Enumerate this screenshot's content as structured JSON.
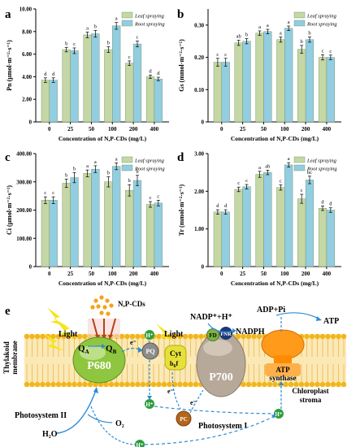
{
  "chart_data": [
    {
      "panel": "a",
      "type": "bar",
      "ylabel_main": "Pn",
      "ylabel_unit": "(μmol·m⁻²·s⁻¹)",
      "xlabel": "Concentration of N,P-CDs (mg/L)",
      "categories": [
        "0",
        "25",
        "50",
        "100",
        "200",
        "400"
      ],
      "ylim": [
        0,
        10
      ],
      "yticks": [
        "0",
        "2.00",
        "4.00",
        "6.00",
        "8.00",
        "10.00"
      ],
      "ytick_values": [
        0,
        2,
        4,
        6,
        8,
        10
      ],
      "series": [
        {
          "name": "Leaf spraying",
          "values": [
            3.7,
            6.4,
            7.7,
            6.4,
            5.2,
            4.0
          ],
          "errors": [
            0.2,
            0.2,
            0.25,
            0.25,
            0.2,
            0.15
          ],
          "letters": [
            "d",
            "b",
            "a",
            "b",
            "c",
            "d"
          ]
        },
        {
          "name": "Root spraying",
          "values": [
            3.7,
            6.3,
            7.8,
            8.5,
            6.9,
            3.8
          ],
          "errors": [
            0.2,
            0.25,
            0.3,
            0.3,
            0.25,
            0.15
          ],
          "letters": [
            "d",
            "c",
            "b",
            "a",
            "c",
            "d"
          ]
        }
      ]
    },
    {
      "panel": "b",
      "type": "bar",
      "ylabel_main": "Gs",
      "ylabel_unit": "(mmol·m⁻²·s⁻¹)",
      "xlabel": "Concentration of N,P-CDs (mg/L)",
      "categories": [
        "0",
        "25",
        "50",
        "100",
        "200",
        "400"
      ],
      "ylim": [
        0,
        0.35
      ],
      "yticks": [
        "0",
        "0.10",
        "0.20",
        "0.30"
      ],
      "ytick_values": [
        0,
        0.1,
        0.2,
        0.3
      ],
      "series": [
        {
          "name": "Leaf spraying",
          "values": [
            0.185,
            0.245,
            0.275,
            0.255,
            0.225,
            0.2
          ],
          "errors": [
            0.012,
            0.008,
            0.007,
            0.008,
            0.012,
            0.008
          ],
          "letters": [
            "c",
            "ab",
            "a",
            "a",
            "b",
            "c"
          ]
        },
        {
          "name": "Root spraying",
          "values": [
            0.185,
            0.25,
            0.28,
            0.29,
            0.255,
            0.2
          ],
          "errors": [
            0.012,
            0.008,
            0.007,
            0.007,
            0.008,
            0.007
          ],
          "letters": [
            "c",
            "b",
            "a",
            "a",
            "b",
            "c"
          ]
        }
      ]
    },
    {
      "panel": "c",
      "type": "bar",
      "ylabel_main": "Ci",
      "ylabel_unit": "(μmol·m⁻²·s⁻¹)",
      "xlabel": "Concentration of N,P-CDs (mg/L)",
      "categories": [
        "0",
        "25",
        "50",
        "100",
        "200",
        "400"
      ],
      "ylim": [
        0,
        400
      ],
      "yticks": [
        "0",
        "100.00",
        "200.00",
        "300.00",
        "400.00"
      ],
      "ytick_values": [
        0,
        100,
        200,
        300,
        400
      ],
      "series": [
        {
          "name": "Leaf spraying",
          "values": [
            235,
            295,
            330,
            300,
            270,
            220
          ],
          "errors": [
            12,
            15,
            12,
            18,
            20,
            10
          ],
          "letters": [
            "c",
            "b",
            "a",
            "b",
            "b",
            "c"
          ]
        },
        {
          "name": "Root spraying",
          "values": [
            235,
            315,
            345,
            355,
            305,
            225
          ],
          "errors": [
            12,
            18,
            12,
            12,
            18,
            10
          ],
          "letters": [
            "c",
            "b",
            "a",
            "a",
            "b",
            "c"
          ]
        }
      ]
    },
    {
      "panel": "d",
      "type": "bar",
      "ylabel_main": "Tr",
      "ylabel_unit": "(mmol·m⁻²·s⁻¹)",
      "xlabel": "Concentration of N,P-CDs (mg/L)",
      "categories": [
        "0",
        "25",
        "50",
        "100",
        "200",
        "400"
      ],
      "ylim": [
        0,
        3
      ],
      "yticks": [
        "0",
        "1.00",
        "2.00",
        "3.00"
      ],
      "ytick_values": [
        0,
        1,
        2,
        3
      ],
      "series": [
        {
          "name": "Leaf spraying",
          "values": [
            1.45,
            2.05,
            2.45,
            2.1,
            1.8,
            1.55
          ],
          "errors": [
            0.06,
            0.06,
            0.08,
            0.07,
            0.12,
            0.06
          ],
          "letters": [
            "d",
            "c",
            "a",
            "c",
            "c",
            "d"
          ]
        },
        {
          "name": "Root spraying",
          "values": [
            1.45,
            2.12,
            2.5,
            2.7,
            2.3,
            1.5
          ],
          "errors": [
            0.06,
            0.06,
            0.06,
            0.06,
            0.1,
            0.06
          ],
          "letters": [
            "d",
            "c",
            "ab",
            "a",
            "bc",
            "d"
          ]
        }
      ]
    }
  ],
  "colors": {
    "leaf": "#c4d7a4",
    "root": "#92cde0",
    "axis": "#000000",
    "membrane_head": "#f2b51a",
    "membrane_tail": "#ecc16a",
    "p680": "#8ec63f",
    "p700": "#b7a99a",
    "pq": "#8c8c8c",
    "cyt": "#e6e03a",
    "pc": "#b5651d",
    "fd": "#7cb342",
    "fnr": "#1a3a78",
    "atp_synthase": "#ff9a1a",
    "flow_arrow": "#2f8bd6",
    "lightning": "#f5e51c",
    "cd_dots": "#f3a31a"
  },
  "diagram": {
    "panel_letter": "e",
    "light_left": "Light",
    "light_mid": "Light",
    "np_cds": "N,P-CDs",
    "qa": "Q",
    "qa_sub": "A",
    "qb": "Q",
    "qb_sub": "B",
    "p680": "P680",
    "pq": "PQ",
    "cyt": "Cyt",
    "cyt_sub": "b",
    "cyt_sub2": "f",
    "cyt_sub2_sub": "6",
    "p700": "P700",
    "pc": "PC",
    "fd": "FD",
    "fnr": "FNR",
    "nadp": "NADP⁺+H⁺",
    "nadph": "NADPH",
    "adp": "ADP+Pi",
    "atp": "ATP",
    "atp_synthase_1": "ATP",
    "atp_synthase_2": "synthase",
    "stroma_1": "Chloroplast",
    "stroma_2": "stroma",
    "thylakoid_1": "Thylakoid",
    "thylakoid_2": "membrane",
    "ps2": "Photosystem II",
    "ps1": "Photosystem I",
    "h2o": "H₂O",
    "o2": "O₂",
    "electron": "e⁻",
    "proton": "H⁺"
  }
}
